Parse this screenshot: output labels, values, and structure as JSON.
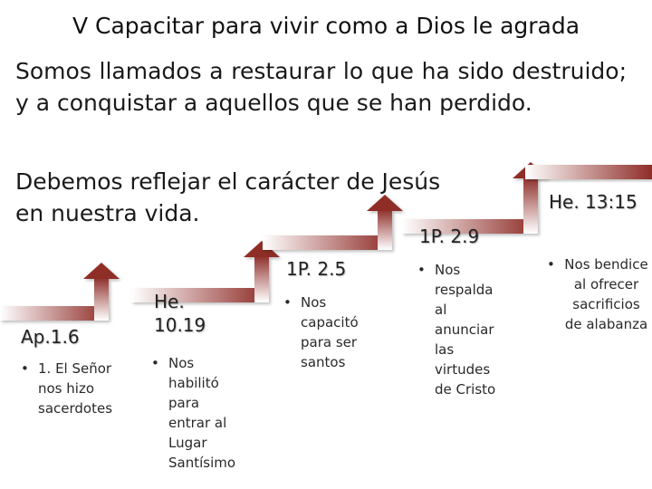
{
  "slide": {
    "title": "V Capacitar para vivir como a Dios le agrada",
    "paragraph_1": "Somos llamados a restaurar lo que ha sido destruido; y a conquistar a aquellos que se han perdido.",
    "paragraph_2_line_1": "Debemos reflejar el carácter de Jesús",
    "paragraph_2_line_2": "en nuestra vida."
  },
  "steps": [
    {
      "ref": "Ap.1.6",
      "bullet": "•",
      "text": "1. El Señor nos hizo sacerdotes"
    },
    {
      "ref": "He. 10.19",
      "bullet": "•",
      "text": "Nos habilitó para entrar al Lugar Santísimo"
    },
    {
      "ref": "1P. 2.5",
      "bullet": "•",
      "text": "Nos capacitó para ser santos"
    },
    {
      "ref": "1P. 2.9",
      "bullet": "•",
      "text": "Nos respalda al anunciar las virtudes de Cristo"
    },
    {
      "ref": "He. 13:15",
      "bullet": "•",
      "text": "Nos bendice al ofrecer sacrificios de alabanza"
    }
  ],
  "colors": {
    "step_dark": "#8e2d28",
    "step_light": "#d69a96",
    "text": "#1a1a1a"
  }
}
